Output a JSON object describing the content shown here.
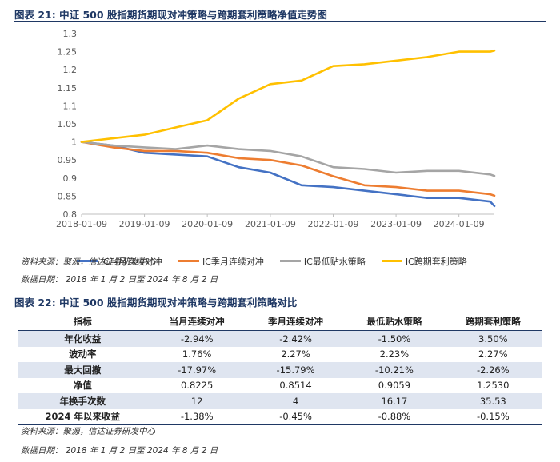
{
  "figure21": {
    "title": "图表 21:  中证 500 股指期货期现对冲策略与跨期套利策略净值走势图",
    "source": "资料来源：聚源，信达证券研发中心",
    "date": "数据日期： 2018 年 1 月 2 日至 2024 年 8 月 2 日"
  },
  "chart_data": {
    "type": "line",
    "title": "中证 500 股指期货期现对冲策略与跨期套利策略净值走势图",
    "xlabel": "",
    "ylabel": "",
    "x": [
      "2018-01-09",
      "2018-07-09",
      "2019-01-09",
      "2019-07-09",
      "2020-01-09",
      "2020-07-09",
      "2021-01-09",
      "2021-07-09",
      "2022-01-09",
      "2022-07-09",
      "2023-01-09",
      "2023-07-09",
      "2024-01-09",
      "2024-07-09",
      "2024-08-02"
    ],
    "x_ticks": [
      "2018-01-09",
      "2019-01-09",
      "2020-01-09",
      "2021-01-09",
      "2022-01-09",
      "2023-01-09",
      "2024-01-09"
    ],
    "ylim": [
      0.8,
      1.3
    ],
    "y_ticks": [
      0.8,
      0.85,
      0.9,
      0.95,
      1.0,
      1.05,
      1.1,
      1.15,
      1.2,
      1.25,
      1.3
    ],
    "grid": false,
    "legend_position": "bottom",
    "series": [
      {
        "name": "IC当月连续对冲",
        "color": "#4472c4",
        "values": [
          1.0,
          0.99,
          0.97,
          0.965,
          0.96,
          0.93,
          0.915,
          0.88,
          0.875,
          0.865,
          0.855,
          0.845,
          0.845,
          0.835,
          0.8225
        ]
      },
      {
        "name": "IC季月连续对冲",
        "color": "#ed7d31",
        "values": [
          1.0,
          0.985,
          0.975,
          0.975,
          0.97,
          0.955,
          0.95,
          0.935,
          0.905,
          0.88,
          0.875,
          0.865,
          0.865,
          0.855,
          0.8514
        ]
      },
      {
        "name": "IC最低贴水策略",
        "color": "#a5a5a5",
        "values": [
          1.0,
          0.99,
          0.985,
          0.98,
          0.99,
          0.98,
          0.975,
          0.96,
          0.93,
          0.925,
          0.915,
          0.92,
          0.92,
          0.91,
          0.9059
        ]
      },
      {
        "name": "IC跨期套利策略",
        "color": "#ffc000",
        "values": [
          1.0,
          1.01,
          1.02,
          1.04,
          1.06,
          1.12,
          1.16,
          1.17,
          1.21,
          1.215,
          1.225,
          1.235,
          1.25,
          1.25,
          1.253
        ]
      }
    ]
  },
  "figure22": {
    "title": "图表 22:  中证 500 股指期货期现对冲策略与跨期套利策略对比",
    "columns": [
      "指标",
      "当月连续对冲",
      "季月连续对冲",
      "最低贴水策略",
      "跨期套利策略"
    ],
    "rows": [
      [
        "年化收益",
        "-2.94%",
        "-2.42%",
        "-1.50%",
        "3.50%"
      ],
      [
        "波动率",
        "1.76%",
        "2.27%",
        "2.23%",
        "2.27%"
      ],
      [
        "最大回撤",
        "-17.97%",
        "-15.79%",
        "-10.21%",
        "-2.26%"
      ],
      [
        "净值",
        "0.8225",
        "0.8514",
        "0.9059",
        "1.2530"
      ],
      [
        "年换手次数",
        "12",
        "4",
        "16.17",
        "35.53"
      ],
      [
        "2024 年以来收益",
        "-1.38%",
        "-0.45%",
        "-0.88%",
        "-0.15%"
      ]
    ],
    "source": "资料来源：聚源，信达证券研发中心",
    "date": "数据日期： 2018 年 1 月 2 日至 2024 年 8 月 2 日"
  }
}
